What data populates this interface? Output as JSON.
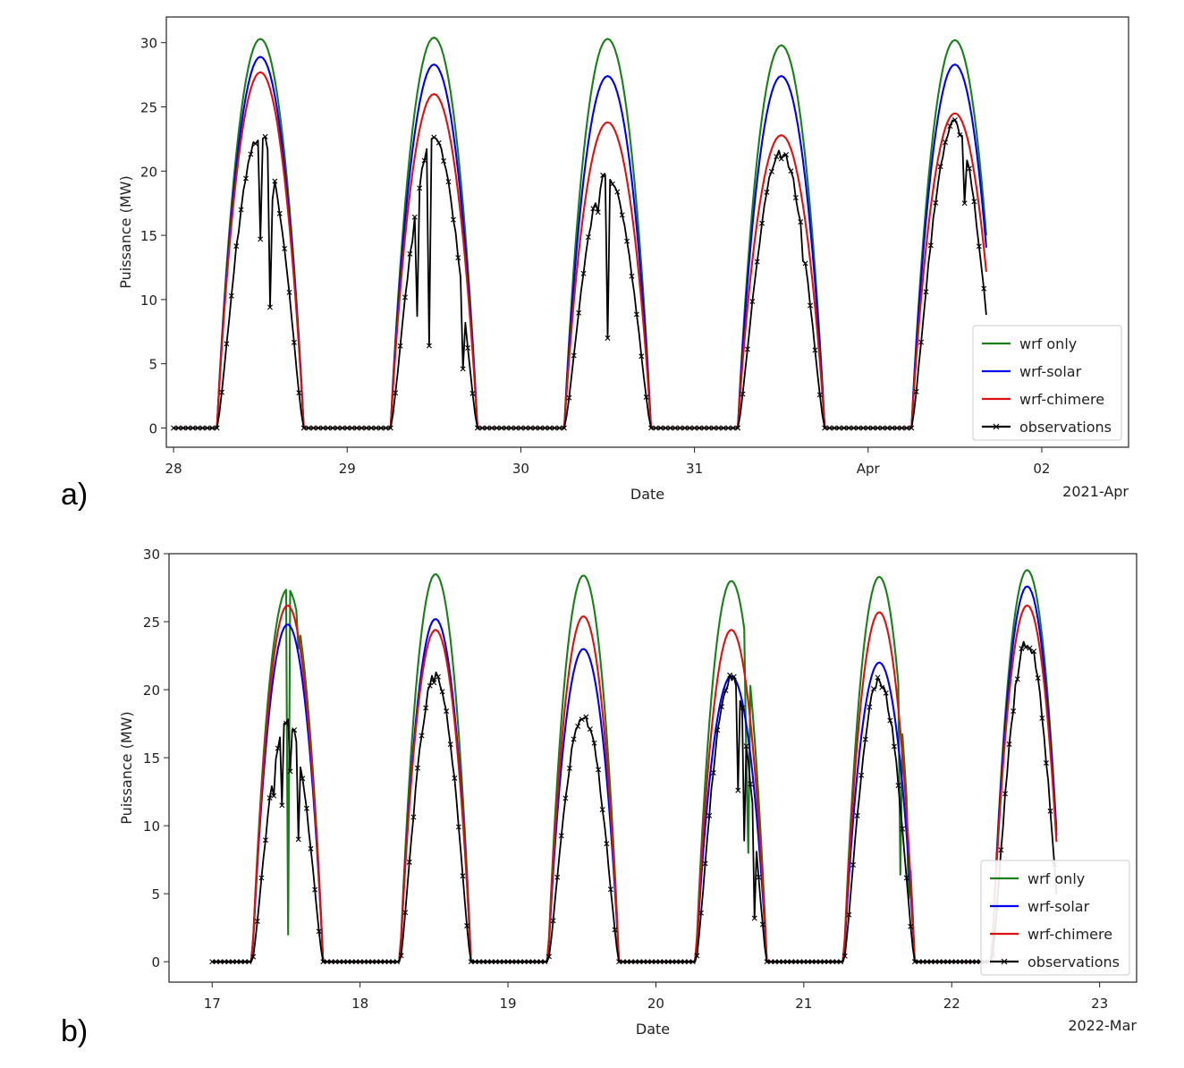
{
  "panel_labels": [
    "a)",
    "b)"
  ],
  "colors": {
    "observations": "#000000",
    "wrf only": "#1a7f1a",
    "wrf-solar": "#0000ee",
    "wrf-chimere": "#dd1111"
  },
  "chart_data": [
    {
      "type": "line",
      "xlabel": "Date",
      "ylabel": "Puissance (MW)",
      "offset_label": "2021-Apr",
      "xlim": [
        "2021-03-27 23:00",
        "2021-04-02 12:00"
      ],
      "ylim": [
        -1.5,
        32
      ],
      "yticks": [
        0,
        5,
        10,
        15,
        20,
        25,
        30
      ],
      "xticks": [
        {
          "date": "2021-03-28",
          "label": "28"
        },
        {
          "date": "2021-03-29",
          "label": "29"
        },
        {
          "date": "2021-03-30",
          "label": "30"
        },
        {
          "date": "2021-03-31",
          "label": "31"
        },
        {
          "date": "2021-04-01",
          "label": "Apr"
        },
        {
          "date": "2021-04-02",
          "label": "02"
        }
      ],
      "legend": "lower-right",
      "grid": false,
      "sunrise_hour": 6.0,
      "sunset_hour": 18.0,
      "data_end": "2021-04-01 16:30",
      "days": [
        "2021-03-28",
        "2021-03-29",
        "2021-03-30",
        "2021-03-31",
        "2021-04-01"
      ],
      "series": [
        {
          "name": "observations",
          "daily_peak_mw": [
            23.4,
            22.7,
            20.1,
            21.8,
            24.1
          ],
          "dips": [
            {
              "t": "2021-03-28 12:00",
              "mw": 14.7
            },
            {
              "t": "2021-03-28 13:20",
              "mw": 9.4
            },
            {
              "t": "2021-03-28 13:40",
              "mw": 17.8
            },
            {
              "t": "2021-03-29 09:00",
              "mw": 14.5
            },
            {
              "t": "2021-03-29 09:30",
              "mw": 8.7
            },
            {
              "t": "2021-03-29 11:20",
              "mw": 6.4
            },
            {
              "t": "2021-03-29 15:50",
              "mw": 4.6
            },
            {
              "t": "2021-03-30 10:30",
              "mw": 16.8
            },
            {
              "t": "2021-03-30 11:50",
              "mw": 7.0
            },
            {
              "t": "2021-03-31 14:50",
              "mw": 13.0
            },
            {
              "t": "2021-04-01 13:20",
              "mw": 17.5
            }
          ]
        },
        {
          "name": "wrf only",
          "daily_peak_mw": [
            30.3,
            30.4,
            30.3,
            29.8,
            30.2
          ]
        },
        {
          "name": "wrf-solar",
          "daily_peak_mw": [
            28.9,
            28.3,
            27.4,
            27.4,
            28.3
          ]
        },
        {
          "name": "wrf-chimere",
          "daily_peak_mw": [
            27.7,
            26.0,
            23.8,
            22.8,
            24.5
          ]
        }
      ]
    },
    {
      "type": "line",
      "xlabel": "Date",
      "ylabel": "Puissance (MW)",
      "offset_label": "2022-Mar",
      "xlim": [
        "2022-03-16 17:00",
        "2022-03-23 06:00"
      ],
      "ylim": [
        -1.5,
        30
      ],
      "yticks": [
        0,
        5,
        10,
        15,
        20,
        25,
        30
      ],
      "xticks": [
        {
          "date": "2022-03-17",
          "label": "17"
        },
        {
          "date": "2022-03-18",
          "label": "18"
        },
        {
          "date": "2022-03-19",
          "label": "19"
        },
        {
          "date": "2022-03-20",
          "label": "20"
        },
        {
          "date": "2022-03-21",
          "label": "21"
        },
        {
          "date": "2022-03-22",
          "label": "22"
        },
        {
          "date": "2022-03-23",
          "label": "23"
        }
      ],
      "legend": "lower-right",
      "grid": false,
      "sunrise_hour": 6.5,
      "sunset_hour": 18.0,
      "data_end": "2022-03-22 17:00",
      "days": [
        "2022-03-17",
        "2022-03-18",
        "2022-03-19",
        "2022-03-20",
        "2022-03-21",
        "2022-03-22"
      ],
      "series": [
        {
          "name": "observations",
          "daily_peak_mw": [
            18.0,
            21.4,
            18.4,
            21.4,
            21.0,
            24.0
          ],
          "dips": [
            {
              "t": "2022-03-17 10:00",
              "mw": 12.2
            },
            {
              "t": "2022-03-17 11:20",
              "mw": 11.5
            },
            {
              "t": "2022-03-17 12:40",
              "mw": 14.0
            },
            {
              "t": "2022-03-17 14:00",
              "mw": 9.0
            },
            {
              "t": "2022-03-20 13:10",
              "mw": 12.6
            },
            {
              "t": "2022-03-20 14:20",
              "mw": 8.9
            },
            {
              "t": "2022-03-20 16:00",
              "mw": 3.2
            }
          ]
        },
        {
          "name": "wrf only",
          "daily_peak_mw": [
            27.4,
            28.5,
            28.4,
            28.0,
            28.3,
            28.8
          ],
          "dips": [
            {
              "t": "2022-03-17 12:20",
              "mw": 2.0
            },
            {
              "t": "2022-03-17 14:00",
              "mw": 23.0
            },
            {
              "t": "2022-03-20 14:30",
              "mw": 15.0
            },
            {
              "t": "2022-03-20 15:00",
              "mw": 8.0
            },
            {
              "t": "2022-03-21 15:40",
              "mw": 6.4
            },
            {
              "t": "2022-03-21 17:00",
              "mw": 4.6
            }
          ]
        },
        {
          "name": "wrf-solar",
          "daily_peak_mw": [
            24.8,
            25.2,
            23.0,
            21.0,
            22.0,
            27.6
          ]
        },
        {
          "name": "wrf-chimere",
          "daily_peak_mw": [
            26.2,
            24.4,
            25.4,
            24.4,
            25.7,
            26.2
          ]
        }
      ]
    }
  ]
}
